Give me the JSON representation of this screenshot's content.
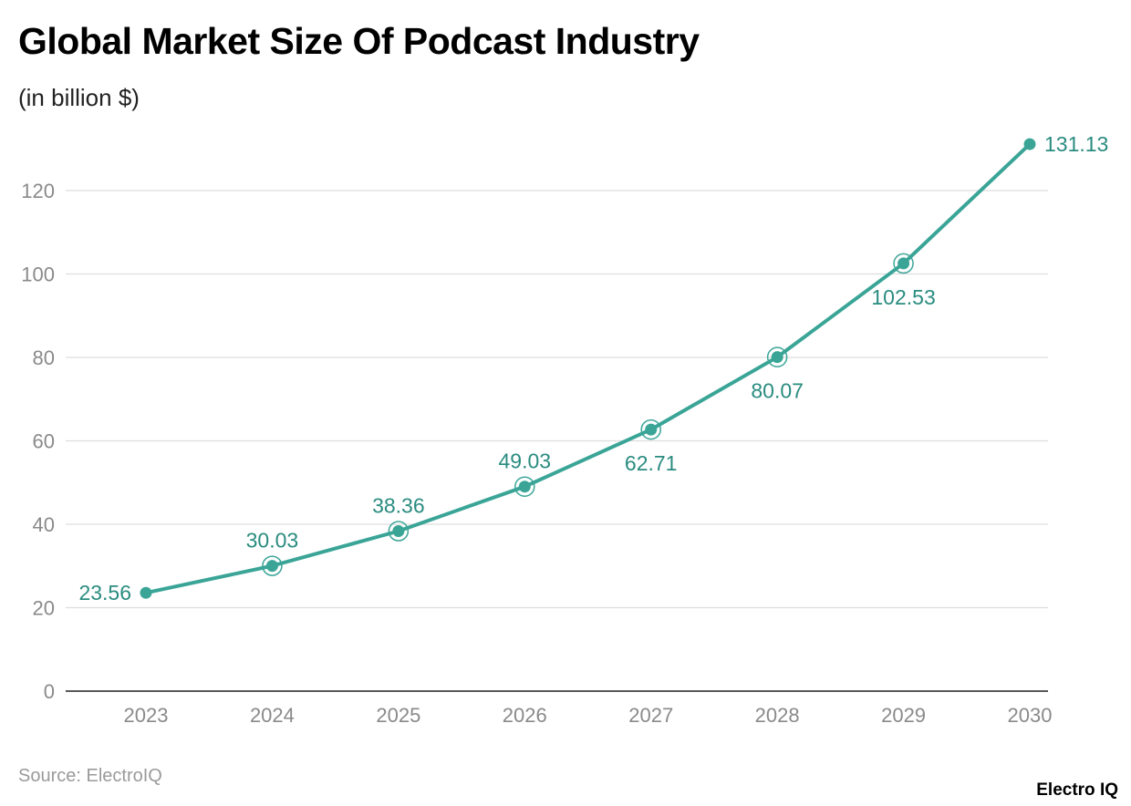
{
  "header": {
    "title": "Global Market Size Of Podcast Industry",
    "subtitle": "(in billion $)"
  },
  "footer": {
    "source": "Source: ElectroIQ",
    "brand": "Electro IQ"
  },
  "colors": {
    "line": "#3aa597",
    "label": "#2a8c80",
    "grid": "#dddddd",
    "axis": "#222222"
  },
  "chart_data": {
    "type": "line",
    "title": "Global Market Size Of Podcast Industry",
    "subtitle": "(in billion $)",
    "xlabel": "",
    "ylabel": "",
    "categories": [
      "2023",
      "2024",
      "2025",
      "2026",
      "2027",
      "2028",
      "2029",
      "2030"
    ],
    "values": [
      23.56,
      30.03,
      38.36,
      49.03,
      62.71,
      80.07,
      102.53,
      131.13
    ],
    "data_labels": [
      "23.56",
      "30.03",
      "38.36",
      "49.03",
      "62.71",
      "80.07",
      "102.53",
      "131.13"
    ],
    "yticks": [
      0,
      20,
      40,
      60,
      80,
      100,
      120
    ],
    "ylim": [
      0,
      131.13
    ],
    "grid": true,
    "legend": "none"
  }
}
